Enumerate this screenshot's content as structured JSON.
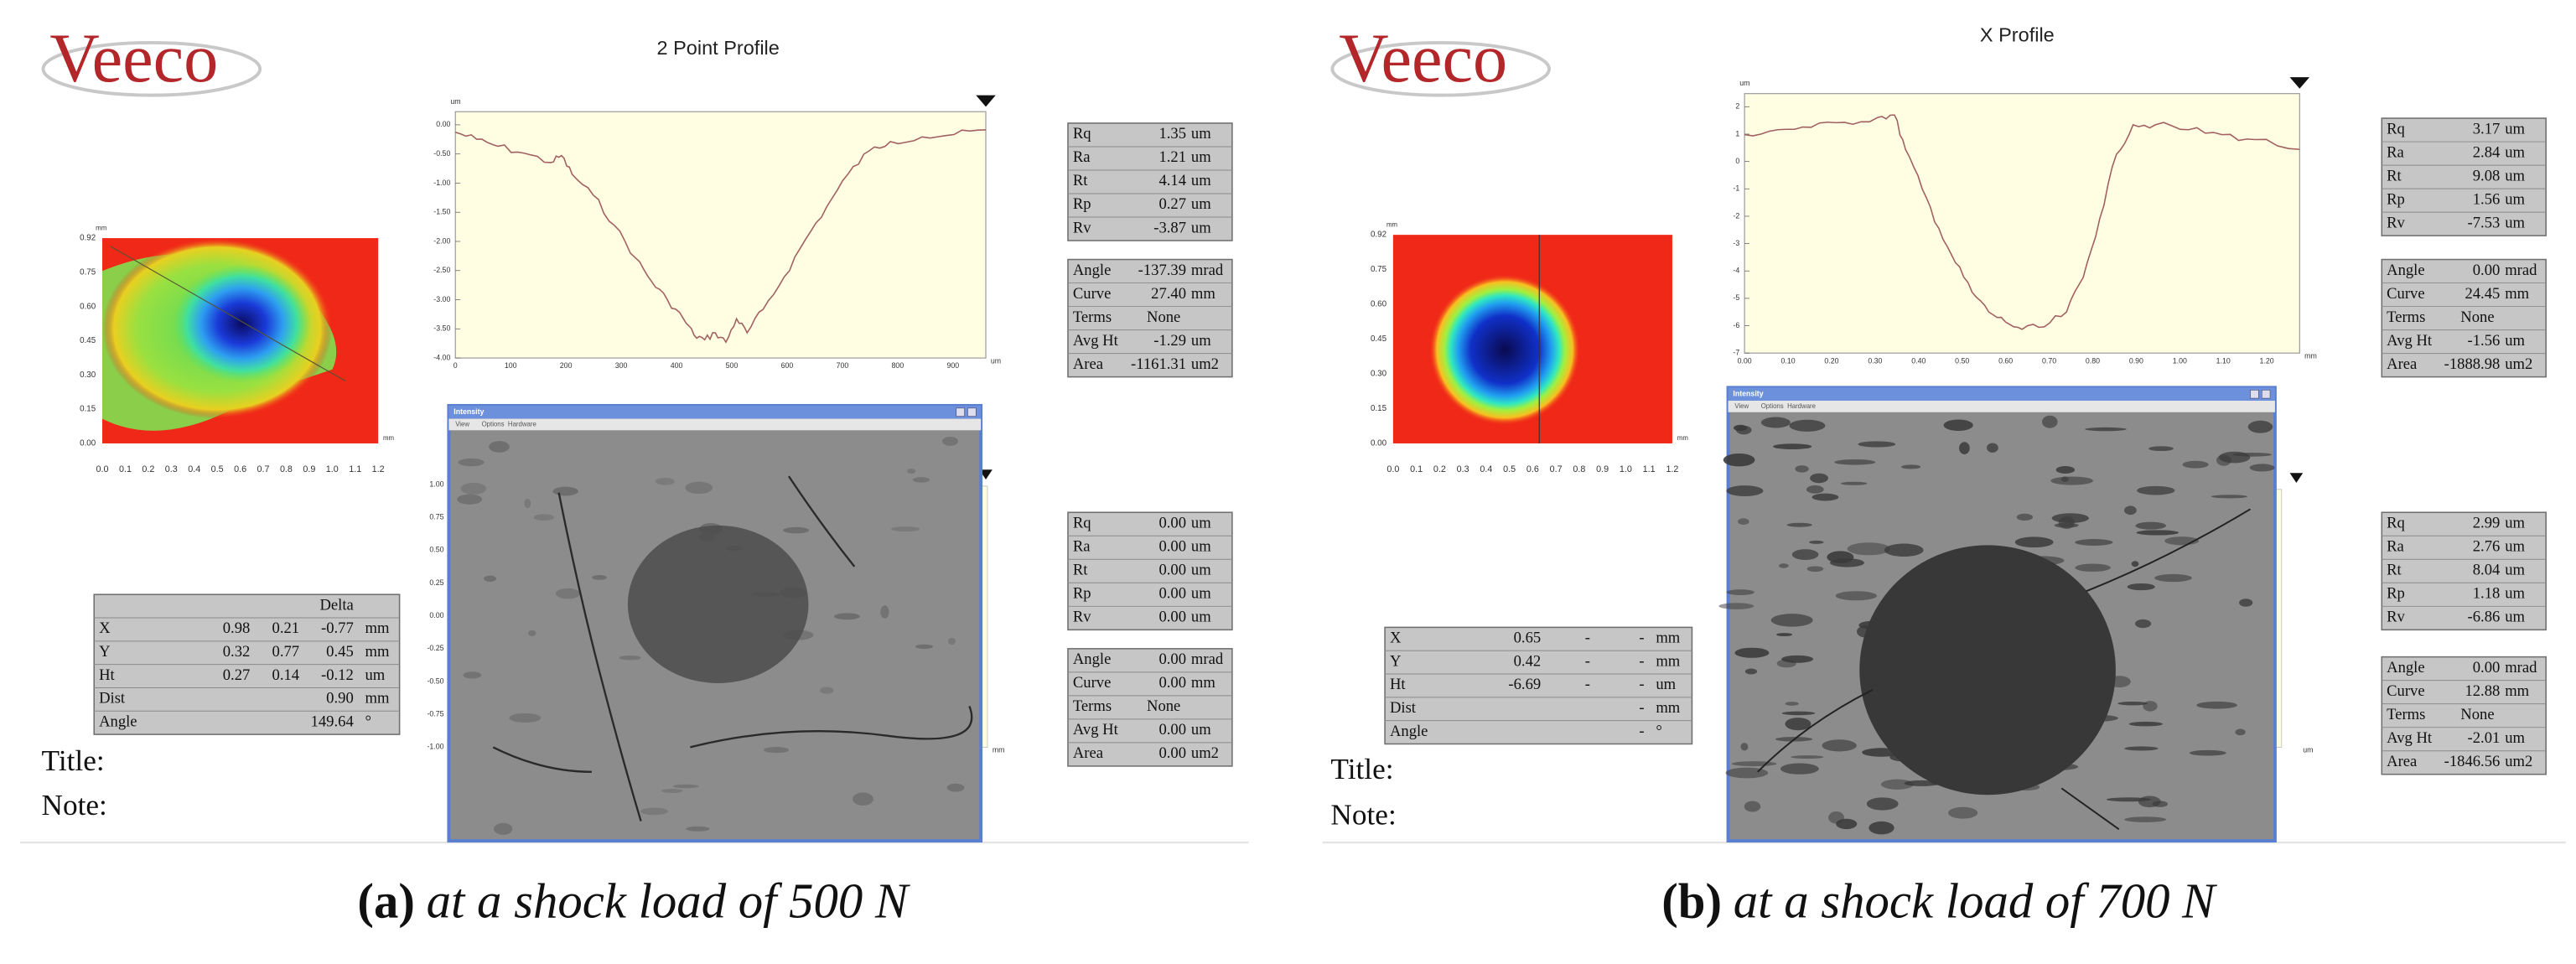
{
  "panels": [
    {
      "logo": "Veeco",
      "profile_title": "2 Point Profile",
      "profile_unit_y": "um",
      "profile_unit_x": "um",
      "profile_yticks": [
        "0.00",
        "-0.50",
        "-1.00",
        "-1.50",
        "-2.00",
        "-2.50",
        "-3.00",
        "-3.50",
        "-4.00"
      ],
      "profile_xticks": [
        "0",
        "100",
        "200",
        "300",
        "400",
        "500",
        "600",
        "700",
        "800",
        "900"
      ],
      "profile2_yticks": [
        "1.00",
        "0.75",
        "0.50",
        "0.25",
        "0.00",
        "-0.25",
        "-0.50",
        "-0.75",
        "-1.00"
      ],
      "profile2_unit_x": "mm",
      "map_unit_y": "mm",
      "map_unit_x": "mm",
      "map_yticks": [
        "0.92",
        "0.75",
        "0.60",
        "0.45",
        "0.30",
        "0.15",
        "0.00"
      ],
      "map_xticks": [
        "0.0",
        "0.1",
        "0.2",
        "0.3",
        "0.4",
        "0.5",
        "0.6",
        "0.7",
        "0.8",
        "0.9",
        "1.0",
        "1.1",
        "1.2"
      ],
      "stats": [
        [
          [
            "Rq",
            "1.35",
            "um"
          ],
          [
            "Ra",
            "1.21",
            "um"
          ],
          [
            "Rt",
            "4.14",
            "um"
          ],
          [
            "Rp",
            "0.27",
            "um"
          ],
          [
            "Rv",
            "-3.87",
            "um"
          ]
        ],
        [
          [
            "Angle",
            "-137.39",
            "mrad"
          ],
          [
            "Curve",
            "27.40",
            "mm"
          ],
          [
            "Terms",
            "None"
          ],
          [
            "Avg Ht",
            "-1.29",
            "um"
          ],
          [
            "Area",
            "-1161.31",
            "um2"
          ]
        ],
        [
          [
            "Rq",
            "0.00",
            "um"
          ],
          [
            "Ra",
            "0.00",
            "um"
          ],
          [
            "Rt",
            "0.00",
            "um"
          ],
          [
            "Rp",
            "0.00",
            "um"
          ],
          [
            "Rv",
            "0.00",
            "um"
          ]
        ],
        [
          [
            "Angle",
            "0.00",
            "mrad"
          ],
          [
            "Curve",
            "0.00",
            "mm"
          ],
          [
            "Terms",
            "None"
          ],
          [
            "Avg Ht",
            "0.00",
            "um"
          ],
          [
            "Area",
            "0.00",
            "um2"
          ]
        ]
      ],
      "cursor": {
        "header": "Delta",
        "rows": [
          [
            "X",
            "0.98",
            "0.21",
            "-0.77",
            "mm"
          ],
          [
            "Y",
            "0.32",
            "0.77",
            "0.45",
            "mm"
          ],
          [
            "Ht",
            "0.27",
            "0.14",
            "-0.12",
            "um"
          ],
          [
            "Dist",
            "0.90",
            "mm"
          ],
          [
            "Angle",
            "149.64",
            "°"
          ]
        ]
      },
      "window_title": "Intensity",
      "menu": [
        "View",
        "Options",
        "Hardware"
      ],
      "title_label": "Title:",
      "note_label": "Note:",
      "caption": {
        "label": "(a)",
        "text": "at a shock load of 500 N"
      }
    },
    {
      "logo": "Veeco",
      "profile_title": "X Profile",
      "profile_unit_y": "um",
      "profile_unit_x": "mm",
      "profile_yticks": [
        "2",
        "1",
        "0",
        "-1",
        "-2",
        "-3",
        "-4",
        "-5",
        "-6",
        "-7"
      ],
      "profile_xticks": [
        "0.00",
        "0.10",
        "0.20",
        "0.30",
        "0.40",
        "0.50",
        "0.60",
        "0.70",
        "0.80",
        "0.90",
        "1.00",
        "1.10",
        "1.20"
      ],
      "profile2_unit_x": "um",
      "map_unit_y": "mm",
      "map_unit_x": "mm",
      "map_yticks": [
        "0.92",
        "0.75",
        "0.60",
        "0.45",
        "0.30",
        "0.15",
        "0.00"
      ],
      "map_xticks": [
        "0.0",
        "0.1",
        "0.2",
        "0.3",
        "0.4",
        "0.5",
        "0.6",
        "0.7",
        "0.8",
        "0.9",
        "1.0",
        "1.1",
        "1.2"
      ],
      "stats": [
        [
          [
            "Rq",
            "3.17",
            "um"
          ],
          [
            "Ra",
            "2.84",
            "um"
          ],
          [
            "Rt",
            "9.08",
            "um"
          ],
          [
            "Rp",
            "1.56",
            "um"
          ],
          [
            "Rv",
            "-7.53",
            "um"
          ]
        ],
        [
          [
            "Angle",
            "0.00",
            "mrad"
          ],
          [
            "Curve",
            "24.45",
            "mm"
          ],
          [
            "Terms",
            "None"
          ],
          [
            "Avg Ht",
            "-1.56",
            "um"
          ],
          [
            "Area",
            "-1888.98",
            "um2"
          ]
        ],
        [
          [
            "Rq",
            "2.99",
            "um"
          ],
          [
            "Ra",
            "2.76",
            "um"
          ],
          [
            "Rt",
            "8.04",
            "um"
          ],
          [
            "Rp",
            "1.18",
            "um"
          ],
          [
            "Rv",
            "-6.86",
            "um"
          ]
        ],
        [
          [
            "Angle",
            "0.00",
            "mrad"
          ],
          [
            "Curve",
            "12.88",
            "mm"
          ],
          [
            "Terms",
            "None"
          ],
          [
            "Avg Ht",
            "-2.01",
            "um"
          ],
          [
            "Area",
            "-1846.56",
            "um2"
          ]
        ]
      ],
      "cursor": {
        "rows": [
          [
            "X",
            "0.65",
            "-",
            "-",
            "mm"
          ],
          [
            "Y",
            "0.42",
            "-",
            "-",
            "mm"
          ],
          [
            "Ht",
            "-6.69",
            "-",
            "-",
            "um"
          ],
          [
            "Dist",
            "-",
            "mm"
          ],
          [
            "Angle",
            "-",
            "°"
          ]
        ]
      },
      "window_title": "Intensity",
      "menu": [
        "View",
        "Options",
        "Hardware"
      ],
      "title_label": "Title:",
      "note_label": "Note:",
      "caption": {
        "label": "(b)",
        "text": "at a shock load of 700 N"
      }
    }
  ]
}
